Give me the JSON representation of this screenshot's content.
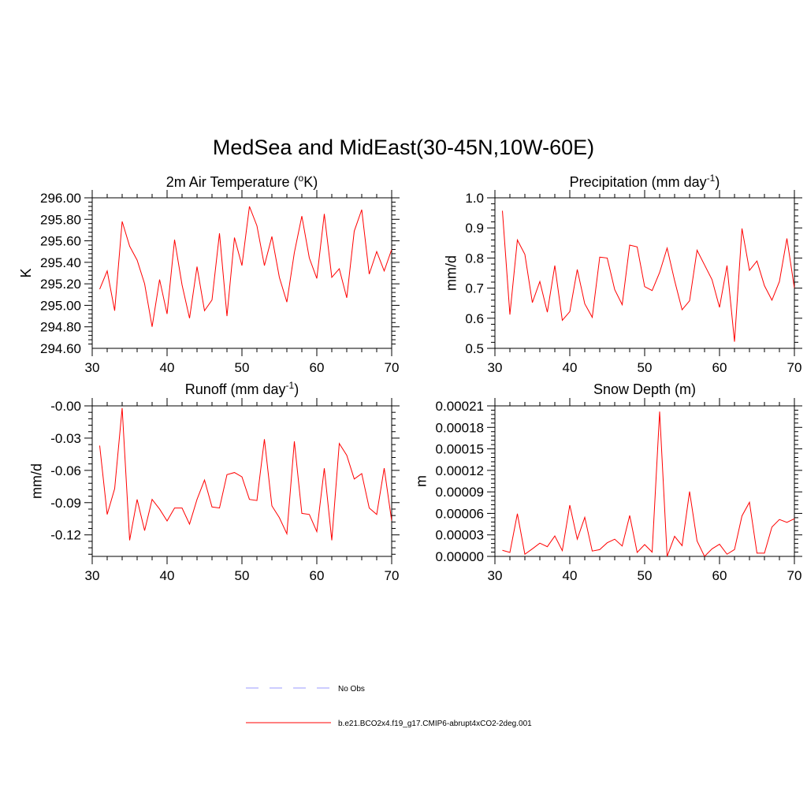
{
  "title": "MedSea and MidEast(30-45N,10W-60E)",
  "legend": {
    "items": [
      {
        "label": "No Obs",
        "color": "#9999ff",
        "style": "dashed"
      },
      {
        "label": "b.e21.BCO2x4.f19_g17.CMIP6-abrupt4xCO2-2deg.001",
        "color": "#ff0000",
        "style": "solid"
      }
    ]
  },
  "chart_data": [
    {
      "type": "line",
      "title": "2m Air Temperature (",
      "title_sup": "o",
      "title_after": "K)",
      "xlabel": "",
      "ylabel": "K",
      "xlim": [
        30,
        70
      ],
      "ylim": [
        294.6,
        296.0
      ],
      "xticks": [
        30,
        40,
        50,
        60,
        70
      ],
      "xtick_labels": [
        "30",
        "40",
        "50",
        "60",
        "70"
      ],
      "yticks": [
        294.6,
        294.8,
        295.0,
        295.2,
        295.4,
        295.6,
        295.8,
        296.0
      ],
      "ytick_labels": [
        "294.60",
        "294.80",
        "295.00",
        "295.20",
        "295.40",
        "295.60",
        "295.80",
        "296.00"
      ],
      "x": [
        31,
        32,
        33,
        34,
        35,
        36,
        37,
        38,
        39,
        40,
        41,
        42,
        43,
        44,
        45,
        46,
        47,
        48,
        49,
        50,
        51,
        52,
        53,
        54,
        55,
        56,
        57,
        58,
        59,
        60,
        61,
        62,
        63,
        64,
        65,
        66,
        67,
        68,
        69,
        70
      ],
      "series": [
        {
          "name": "b.e21.BCO2x4.f19_g17.CMIP6-abrupt4xCO2-2deg.001",
          "color": "#ff0000",
          "values": [
            295.15,
            295.32,
            294.95,
            295.78,
            295.55,
            295.42,
            295.2,
            294.8,
            295.24,
            294.92,
            295.61,
            295.19,
            294.88,
            295.36,
            294.95,
            295.05,
            295.67,
            294.9,
            295.63,
            295.37,
            295.92,
            295.74,
            295.37,
            295.64,
            295.26,
            295.03,
            295.49,
            295.83,
            295.44,
            295.25,
            295.85,
            295.26,
            295.34,
            295.07,
            295.69,
            295.89,
            295.29,
            295.5,
            295.32,
            295.52
          ]
        }
      ]
    },
    {
      "type": "line",
      "title": "Precipitation (mm day",
      "title_sup": "-1",
      "title_after": ")",
      "xlabel": "",
      "ylabel": "mm/d",
      "xlim": [
        30,
        70
      ],
      "ylim": [
        0.5,
        1.0
      ],
      "xticks": [
        30,
        40,
        50,
        60,
        70
      ],
      "xtick_labels": [
        "30",
        "40",
        "50",
        "60",
        "70"
      ],
      "yticks": [
        0.5,
        0.6,
        0.7,
        0.8,
        0.9,
        1.0
      ],
      "ytick_labels": [
        "0.5",
        "0.6",
        "0.7",
        "0.8",
        "0.9",
        "1.0"
      ],
      "x": [
        31,
        32,
        33,
        34,
        35,
        36,
        37,
        38,
        39,
        40,
        41,
        42,
        43,
        44,
        45,
        46,
        47,
        48,
        49,
        50,
        51,
        52,
        53,
        54,
        55,
        56,
        57,
        58,
        59,
        60,
        61,
        62,
        63,
        64,
        65,
        66,
        67,
        68,
        69,
        70
      ],
      "series": [
        {
          "name": "b.e21.BCO2x4.f19_g17.CMIP6-abrupt4xCO2-2deg.001",
          "color": "#ff0000",
          "values": [
            0.957,
            0.612,
            0.86,
            0.812,
            0.652,
            0.722,
            0.62,
            0.775,
            0.593,
            0.622,
            0.762,
            0.648,
            0.603,
            0.803,
            0.8,
            0.695,
            0.645,
            0.843,
            0.837,
            0.705,
            0.692,
            0.752,
            0.833,
            0.725,
            0.628,
            0.658,
            0.826,
            0.777,
            0.728,
            0.636,
            0.775,
            0.522,
            0.898,
            0.759,
            0.79,
            0.708,
            0.66,
            0.722,
            0.865,
            0.7
          ]
        }
      ]
    },
    {
      "type": "line",
      "title": "Runoff (mm day",
      "title_sup": "-1",
      "title_after": ")",
      "xlabel": "",
      "ylabel": "mm/d",
      "xlim": [
        30,
        70
      ],
      "ylim": [
        -0.14,
        0.0
      ],
      "xticks": [
        30,
        40,
        50,
        60,
        70
      ],
      "xtick_labels": [
        "30",
        "40",
        "50",
        "60",
        "70"
      ],
      "yticks": [
        -0.12,
        -0.09,
        -0.06,
        -0.03,
        0.0
      ],
      "ytick_labels": [
        "-0.12",
        "-0.09",
        "-0.06",
        "-0.03",
        "-0.00"
      ],
      "x": [
        31,
        32,
        33,
        34,
        35,
        36,
        37,
        38,
        39,
        40,
        41,
        42,
        43,
        44,
        45,
        46,
        47,
        48,
        49,
        50,
        51,
        52,
        53,
        54,
        55,
        56,
        57,
        58,
        59,
        60,
        61,
        62,
        63,
        64,
        65,
        66,
        67,
        68,
        69,
        70
      ],
      "series": [
        {
          "name": "b.e21.BCO2x4.f19_g17.CMIP6-abrupt4xCO2-2deg.001",
          "color": "#ff0000",
          "values": [
            -0.037,
            -0.101,
            -0.077,
            -0.002,
            -0.125,
            -0.087,
            -0.116,
            -0.087,
            -0.096,
            -0.107,
            -0.095,
            -0.095,
            -0.11,
            -0.087,
            -0.069,
            -0.094,
            -0.095,
            -0.064,
            -0.062,
            -0.066,
            -0.087,
            -0.088,
            -0.031,
            -0.093,
            -0.104,
            -0.119,
            -0.033,
            -0.1,
            -0.101,
            -0.117,
            -0.058,
            -0.125,
            -0.035,
            -0.046,
            -0.068,
            -0.063,
            -0.095,
            -0.101,
            -0.058,
            -0.107
          ]
        }
      ]
    },
    {
      "type": "line",
      "title": "Snow Depth (m)",
      "title_sup": "",
      "title_after": "",
      "xlabel": "",
      "ylabel": "m",
      "xlim": [
        30,
        70
      ],
      "ylim": [
        0.0,
        0.00021
      ],
      "xticks": [
        30,
        40,
        50,
        60,
        70
      ],
      "xtick_labels": [
        "30",
        "40",
        "50",
        "60",
        "70"
      ],
      "yticks": [
        0.0,
        3e-05,
        6e-05,
        9e-05,
        0.00012,
        0.00015,
        0.00018,
        0.00021
      ],
      "ytick_labels": [
        "0.00000",
        "0.00003",
        "0.00006",
        "0.00009",
        "0.00012",
        "0.00015",
        "0.00018",
        "0.00021"
      ],
      "x": [
        31,
        32,
        33,
        34,
        35,
        36,
        37,
        38,
        39,
        40,
        41,
        42,
        43,
        44,
        45,
        46,
        47,
        48,
        49,
        50,
        51,
        52,
        53,
        54,
        55,
        56,
        57,
        58,
        59,
        60,
        61,
        62,
        63,
        64,
        65,
        66,
        67,
        68,
        69,
        70
      ],
      "series": [
        {
          "name": "b.e21.BCO2x4.f19_g17.CMIP6-abrupt4xCO2-2deg.001",
          "color": "#ff0000",
          "values": [
            8.5e-06,
            5.5e-06,
            5.95e-05,
            3e-06,
            1.05e-05,
            1.85e-05,
            1.35e-05,
            2.85e-05,
            8e-06,
            7.15e-05,
            2.4e-05,
            5.45e-05,
            7.5e-06,
            9.5e-06,
            1.9e-05,
            2.4e-05,
            1.45e-05,
            5.7e-05,
            5.5e-06,
            1.65e-05,
            6e-06,
            0.000202,
            0.0,
            2.8e-05,
            1.5e-05,
            9.05e-05,
            2.15e-05,
            0.0,
            1.05e-05,
            1.7e-05,
            3e-06,
            9.5e-06,
            5.65e-05,
            7.55e-05,
            4.5e-06,
            4.5e-06,
            4.1e-05,
            5.15e-05,
            4.75e-05,
            5.25e-05
          ]
        }
      ]
    }
  ]
}
